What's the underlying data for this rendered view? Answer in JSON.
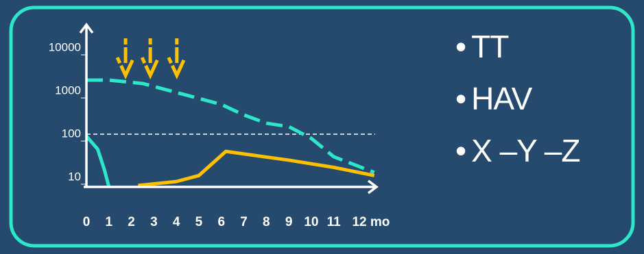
{
  "chart_data": {
    "type": "line",
    "log_y": true,
    "xlim": [
      0,
      12.9
    ],
    "xticks": [
      0,
      1,
      2,
      3,
      4,
      5,
      6,
      7,
      8,
      9,
      10,
      11,
      {
        "value": 12,
        "label": "12 mo"
      }
    ],
    "ylim": [
      6,
      30000
    ],
    "yticks": [
      10,
      100,
      1000,
      10000
    ],
    "reference_line_y": 100,
    "dose_arrows_x": [
      1.74,
      2.84,
      4.02
    ],
    "series": [
      {
        "color": "#2ee6c8",
        "dash": true,
        "x": [
          0,
          1,
          2.5,
          4,
          6,
          7,
          8,
          9,
          10,
          11,
          12.8
        ],
        "values": [
          1800,
          1800,
          1500,
          930,
          490,
          280,
          180,
          150,
          80,
          30,
          13
        ]
      },
      {
        "color": "#2ee6c8",
        "dash": false,
        "x": [
          0,
          0.5,
          0.8,
          1
        ],
        "values": [
          90,
          45,
          15,
          6
        ]
      },
      {
        "color": "#ffc000",
        "dash": false,
        "x": [
          2.3,
          4,
          5,
          6.2,
          9,
          11,
          12.8
        ],
        "values": [
          6.5,
          8,
          11,
          40,
          25,
          17,
          11
        ]
      }
    ]
  },
  "bullets": [
    "TT",
    "HAV",
    "X –Y –Z"
  ]
}
